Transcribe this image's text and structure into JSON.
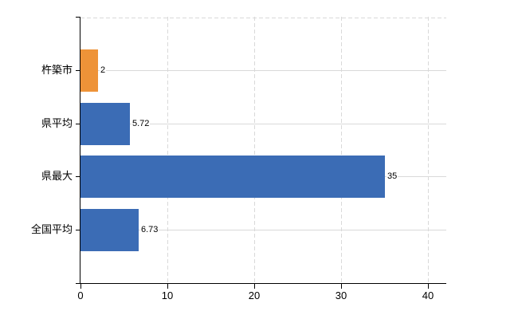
{
  "chart_data": {
    "type": "bar",
    "orientation": "horizontal",
    "title": "",
    "categories": [
      "杵築市",
      "県平均",
      "県最大",
      "全国平均"
    ],
    "values": [
      2,
      5.72,
      35,
      6.73
    ],
    "value_labels": [
      "2",
      "5.72",
      "35",
      "6.73"
    ],
    "bar_colors": [
      "#ee9338",
      "#3b6cb5",
      "#3b6cb5",
      "#3b6cb5"
    ],
    "x_tick_labels": [
      "0",
      "10",
      "20",
      "30",
      "40"
    ],
    "x_tick_values": [
      0,
      10,
      20,
      30,
      40
    ],
    "xlim": [
      0,
      42.1
    ],
    "grid": true,
    "legend": false,
    "colors": {
      "highlight_bar": "#ee9338",
      "default_bar": "#3b6cb5",
      "gridline": "#d9d9d9",
      "axis": "#000000",
      "text": "#000000",
      "background": "#ffffff"
    }
  }
}
